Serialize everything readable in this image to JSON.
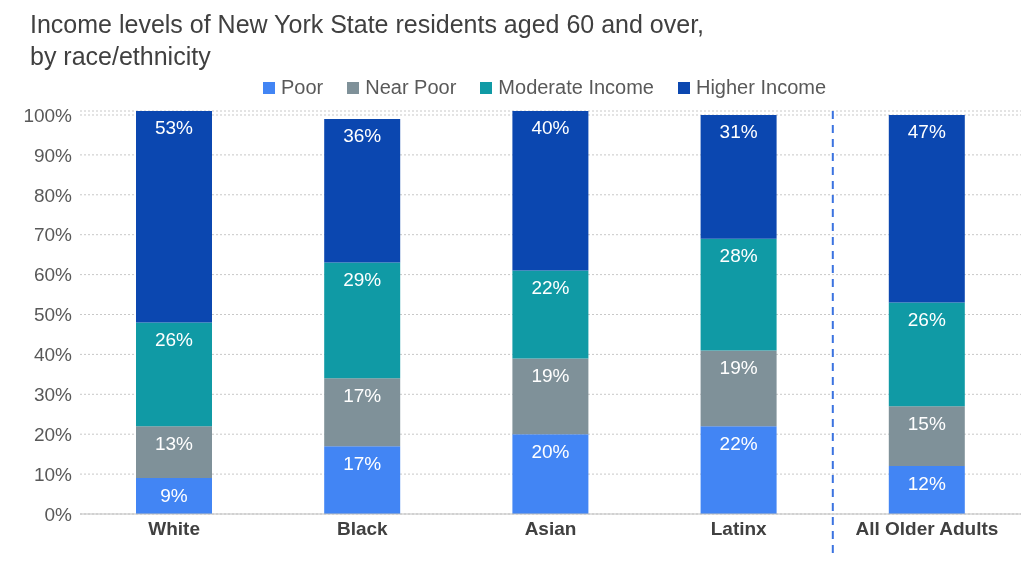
{
  "chart_data": {
    "type": "bar",
    "title": "Income levels of New York State residents aged 60 and over,\nby race/ethnicity",
    "categories": [
      "White",
      "Black",
      "Asian",
      "Latinx",
      "All Older Adults"
    ],
    "stacked": true,
    "series": [
      {
        "name": "Poor",
        "color": "#4285f4",
        "values": [
          9,
          17,
          20,
          22,
          12
        ],
        "value_labels": [
          "9%",
          "17%",
          "20%",
          "22%",
          "12%"
        ]
      },
      {
        "name": "Near Poor",
        "color": "#7f9199",
        "values": [
          13,
          17,
          19,
          19,
          15
        ],
        "value_labels": [
          "13%",
          "17%",
          "19%",
          "19%",
          "15%"
        ]
      },
      {
        "name": "Moderate Income",
        "color": "#109aa5",
        "values": [
          26,
          29,
          22,
          28,
          26
        ],
        "value_labels": [
          "26%",
          "29%",
          "22%",
          "28%",
          "26%"
        ]
      },
      {
        "name": "Higher Income",
        "color": "#0b47b0",
        "values": [
          53,
          36,
          40,
          31,
          47
        ],
        "value_labels": [
          "53%",
          "36%",
          "40%",
          "31%",
          "47%"
        ]
      }
    ],
    "ylim": [
      0,
      101
    ],
    "yticks": [
      {
        "value": 0,
        "label": "0%"
      },
      {
        "value": 10,
        "label": "10%"
      },
      {
        "value": 20,
        "label": "20%"
      },
      {
        "value": 30,
        "label": "30%"
      },
      {
        "value": 40,
        "label": "40%"
      },
      {
        "value": 50,
        "label": "50%"
      },
      {
        "value": 60,
        "label": "60%"
      },
      {
        "value": 70,
        "label": "70%"
      },
      {
        "value": 80,
        "label": "80%"
      },
      {
        "value": 90,
        "label": "90%"
      },
      {
        "value": 100,
        "label": "100%"
      }
    ],
    "grid": "y",
    "legend": "top"
  }
}
